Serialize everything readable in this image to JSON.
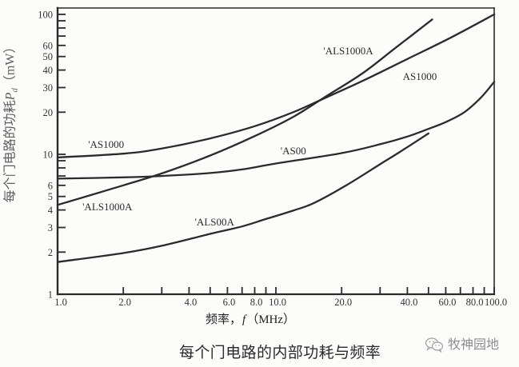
{
  "chart_data": {
    "type": "line",
    "title": "每个门电路的内部功耗与频率",
    "xlabel": "频率，f（MHz）",
    "xlabel_parts": {
      "text": "频率，",
      "symbol": "f",
      "unit": "（MHz）"
    },
    "ylabel": "每个门电路的功耗Pd（mW）",
    "ylabel_parts": {
      "text": "每个门电路的功耗",
      "symbol": "P",
      "subscript": "d",
      "unit": "（mW）"
    },
    "xscale": "log",
    "yscale": "log",
    "xlim": [
      1,
      100
    ],
    "ylim": [
      1,
      100
    ],
    "grid": false,
    "legend": null,
    "line_color": "#2b2b2b",
    "x_ticks": [
      1,
      2,
      3,
      4,
      5,
      6,
      7,
      8,
      9,
      10,
      20,
      30,
      40,
      50,
      60,
      70,
      80,
      90,
      100
    ],
    "x_tick_labels": [
      {
        "value": 1,
        "label": "1.0"
      },
      {
        "value": 2,
        "label": "2.0"
      },
      {
        "value": 4,
        "label": "4.0"
      },
      {
        "value": 6,
        "label": "6.0"
      },
      {
        "value": 8,
        "label": "8.0"
      },
      {
        "value": 10,
        "label": "10.0"
      },
      {
        "value": 20,
        "label": "20.0"
      },
      {
        "value": 40,
        "label": "40.0"
      },
      {
        "value": 60,
        "label": "60.0"
      },
      {
        "value": 80,
        "label": "80.0"
      },
      {
        "value": 100,
        "label": "100.0"
      }
    ],
    "y_ticks": [
      2,
      3,
      4,
      5,
      6,
      7,
      8,
      9,
      10,
      20,
      30,
      40,
      50,
      60,
      70,
      80,
      90,
      100
    ],
    "y_tick_labels": [
      {
        "value": 1,
        "label": "1"
      },
      {
        "value": 2,
        "label": "2"
      },
      {
        "value": 3,
        "label": "3"
      },
      {
        "value": 4,
        "label": "4"
      },
      {
        "value": 5,
        "label": "5"
      },
      {
        "value": 6,
        "label": "6"
      },
      {
        "value": 10,
        "label": "10"
      },
      {
        "value": 20,
        "label": "20"
      },
      {
        "value": 30,
        "label": "30"
      },
      {
        "value": 40,
        "label": "40"
      },
      {
        "value": 50,
        "label": "50"
      },
      {
        "value": 60,
        "label": "60"
      },
      {
        "value": 100,
        "label": "100"
      }
    ],
    "series": [
      {
        "id": "as1000",
        "name": "'AS1000",
        "points": [
          [
            1,
            9.5
          ],
          [
            2,
            10.1
          ],
          [
            3,
            11.0
          ],
          [
            5,
            13.0
          ],
          [
            8,
            15.9
          ],
          [
            12,
            20.0
          ],
          [
            17,
            25.5
          ],
          [
            25,
            33.5
          ],
          [
            40,
            48
          ],
          [
            63,
            68
          ],
          [
            100,
            100
          ]
        ]
      },
      {
        "id": "als1000a",
        "name": "'ALS1000A",
        "points": [
          [
            1,
            4.35
          ],
          [
            2,
            6.0
          ],
          [
            3,
            7.3
          ],
          [
            5,
            9.8
          ],
          [
            8,
            13.5
          ],
          [
            12,
            18.5
          ],
          [
            17,
            26
          ],
          [
            25,
            38
          ],
          [
            35,
            57
          ],
          [
            52,
            92
          ]
        ]
      },
      {
        "id": "as00",
        "name": "'AS00",
        "points": [
          [
            1,
            6.7
          ],
          [
            2,
            6.85
          ],
          [
            3,
            7.0
          ],
          [
            5,
            7.35
          ],
          [
            7,
            7.8
          ],
          [
            10,
            8.6
          ],
          [
            20,
            10.2
          ],
          [
            30,
            11.8
          ],
          [
            40,
            13.4
          ],
          [
            50,
            15.2
          ],
          [
            60,
            17
          ],
          [
            73,
            20
          ],
          [
            87,
            25.5
          ],
          [
            100,
            33
          ]
        ]
      },
      {
        "id": "als00a",
        "name": "'ALS00A",
        "points": [
          [
            1,
            1.7
          ],
          [
            2,
            1.97
          ],
          [
            3,
            2.22
          ],
          [
            5,
            2.7
          ],
          [
            7,
            3.05
          ],
          [
            9,
            3.45
          ],
          [
            12,
            3.96
          ],
          [
            15,
            4.5
          ],
          [
            21,
            6.0
          ],
          [
            30,
            8.5
          ],
          [
            37,
            10.4
          ],
          [
            50,
            14.1
          ]
        ]
      }
    ],
    "annotations": [
      {
        "text": "'AS1000",
        "series": "as1000",
        "x": 1.38,
        "y": 11.1
      },
      {
        "text": "'ALS1000A",
        "series": "als1000a",
        "x": 1.3,
        "y": 3.98
      },
      {
        "text": "'ALS00A",
        "series": "als00a",
        "x": 4.25,
        "y": 3.1
      },
      {
        "text": "'AS00",
        "series": "as00",
        "x": 10.5,
        "y": 10.0
      },
      {
        "text": "'ALS1000A",
        "series": "als1000a",
        "x": 16.5,
        "y": 51.8
      },
      {
        "text": "AS1000",
        "series": "as1000",
        "x": 38.1,
        "y": 34.0
      }
    ]
  },
  "watermark": {
    "icon": "wechat-icon",
    "text": "牧神园地"
  }
}
